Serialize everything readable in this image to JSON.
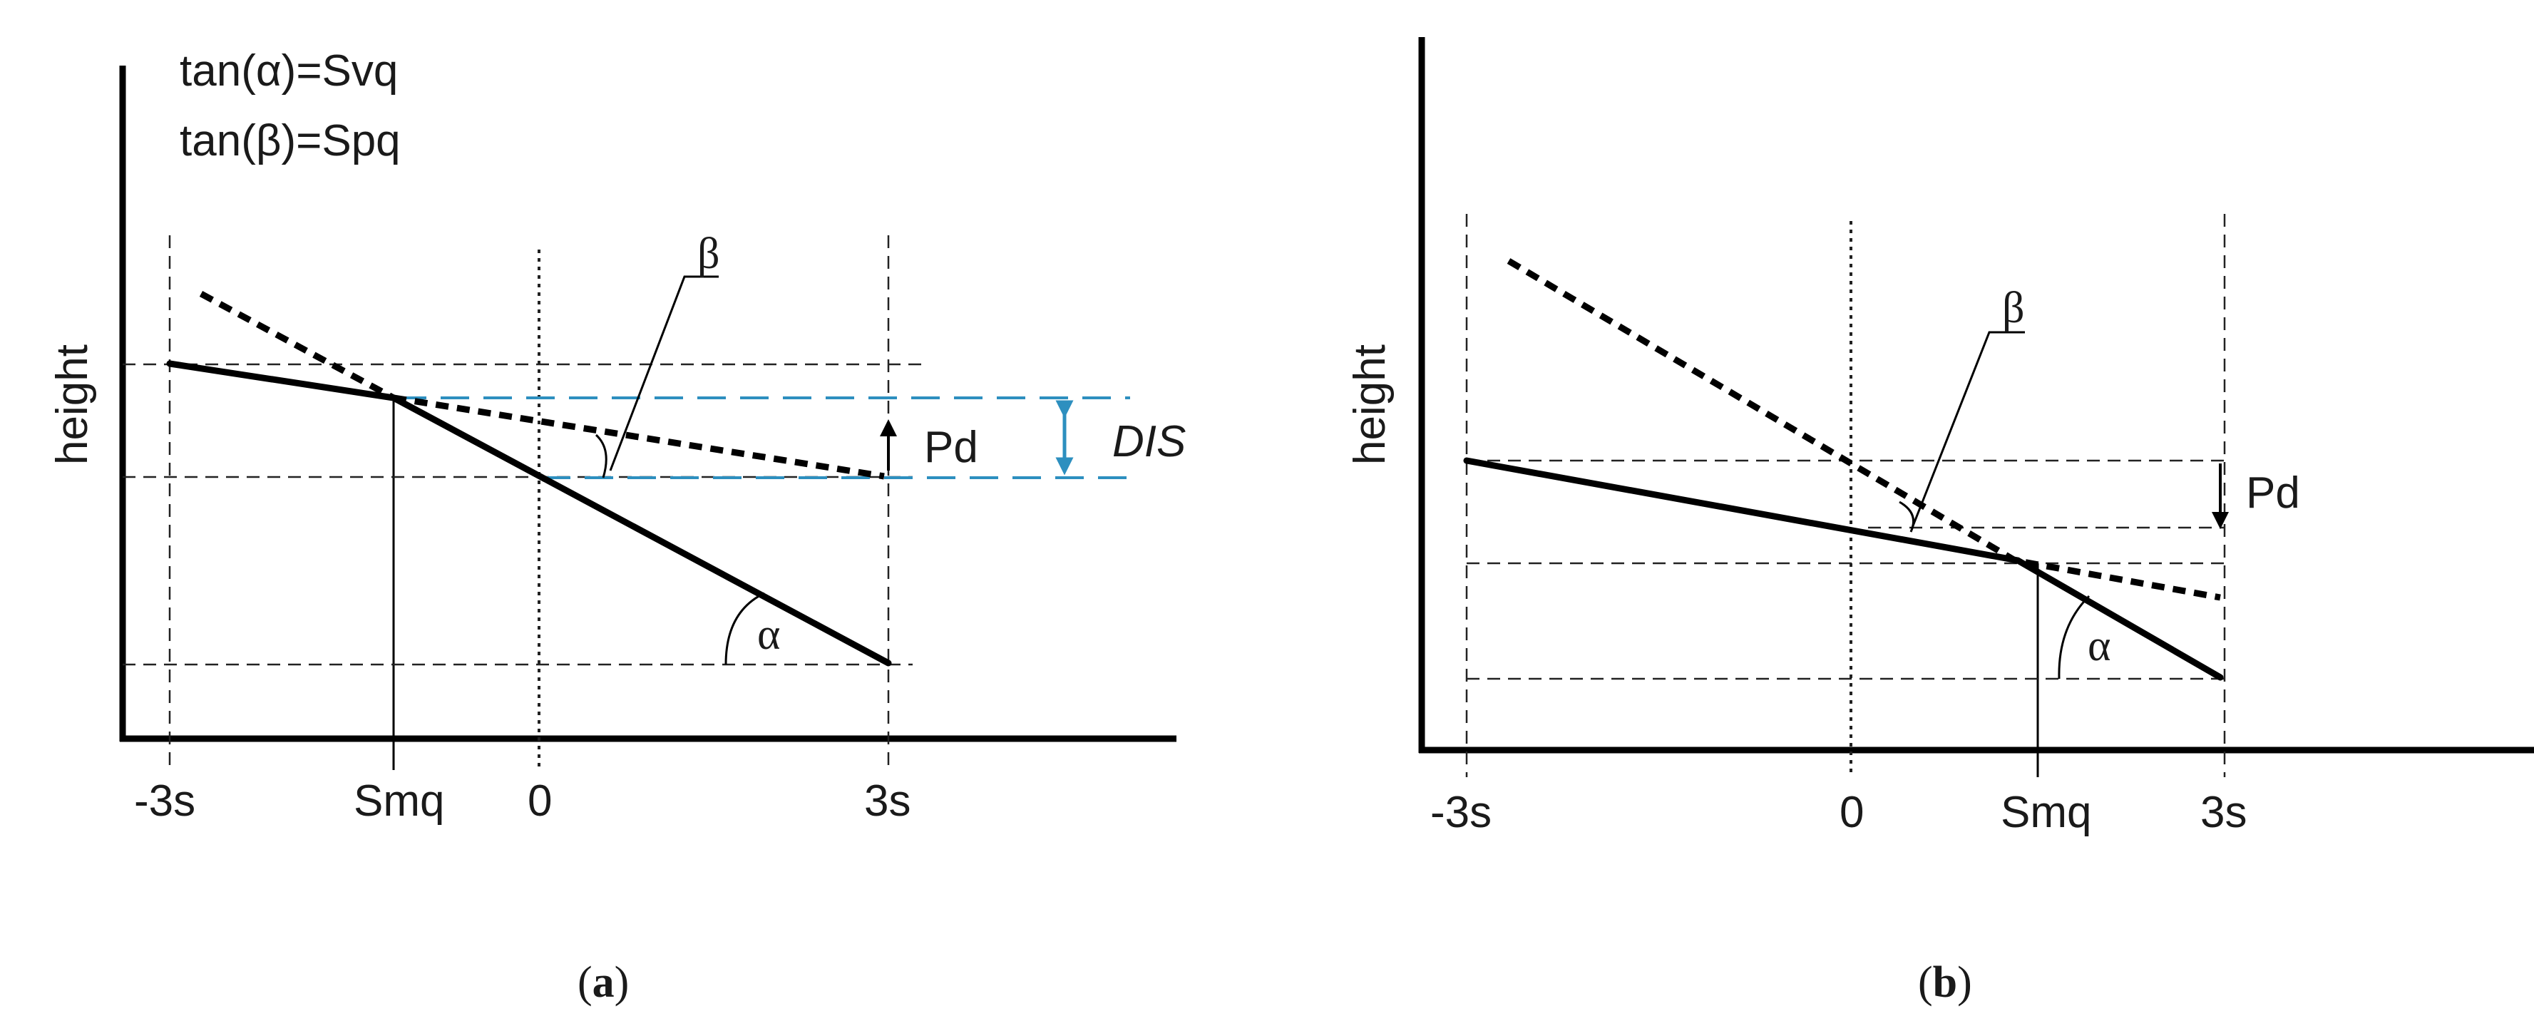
{
  "panel_a": {
    "caption": "a",
    "formula_alpha": "tan(α)=Svq",
    "formula_beta": "tan(β)=Spq",
    "ylabel": "height",
    "x_ticks": [
      "-3s",
      "Smq",
      "0",
      "3s"
    ],
    "beta_label": "β",
    "alpha_label": "α",
    "pd_label": "Pd",
    "dis_label": "DIS"
  },
  "panel_b": {
    "caption": "b",
    "ylabel": "height",
    "x_ticks": [
      "-3s",
      "0",
      "Smq",
      "3s"
    ],
    "beta_label": "β",
    "alpha_label": "α",
    "pd_label": "Pd"
  },
  "colors": {
    "lines": "#000000",
    "dis_marker": "#2d8fbf"
  }
}
